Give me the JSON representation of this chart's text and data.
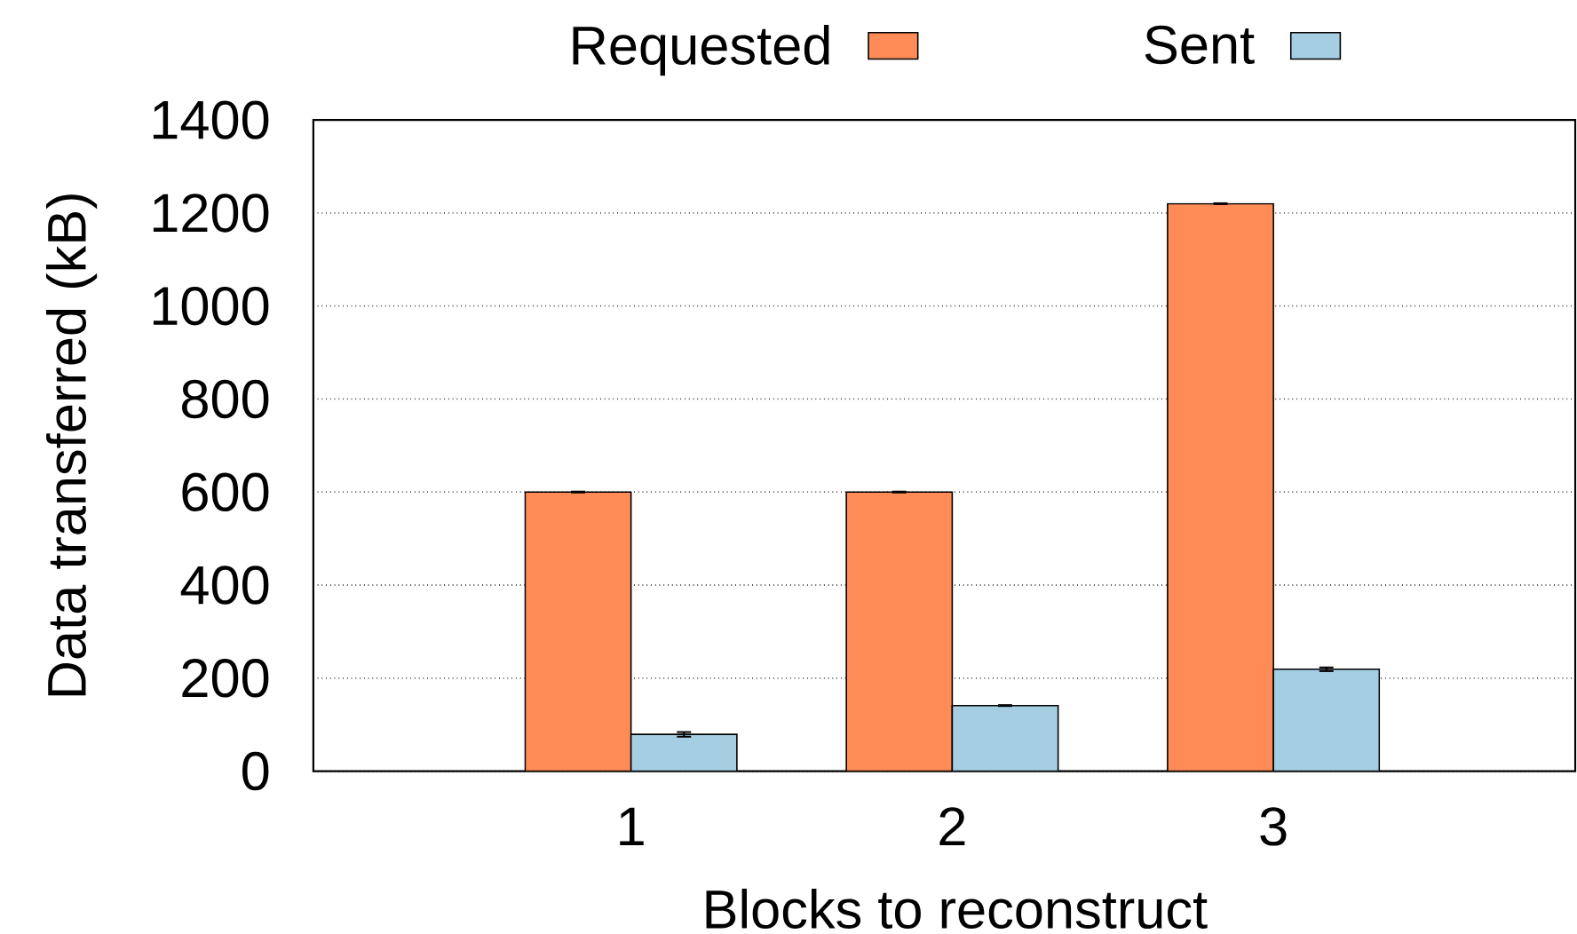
{
  "chart_data": {
    "type": "bar",
    "xlabel": "Blocks to reconstruct",
    "ylabel": "Data transferred (kB)",
    "categories": [
      "1",
      "2",
      "3"
    ],
    "series": [
      {
        "name": "Requested",
        "color": "#ff8c57",
        "values": [
          600,
          600,
          1220
        ],
        "errors": [
          1,
          1,
          1
        ]
      },
      {
        "name": "Sent",
        "color": "#a6cee3",
        "values": [
          79,
          141,
          219
        ],
        "errors": [
          5,
          1,
          4
        ]
      }
    ],
    "ylim": [
      0,
      1400
    ],
    "yticks": [
      0,
      200,
      400,
      600,
      800,
      1000,
      1200,
      1400
    ],
    "grid": "y",
    "legend": "top"
  }
}
